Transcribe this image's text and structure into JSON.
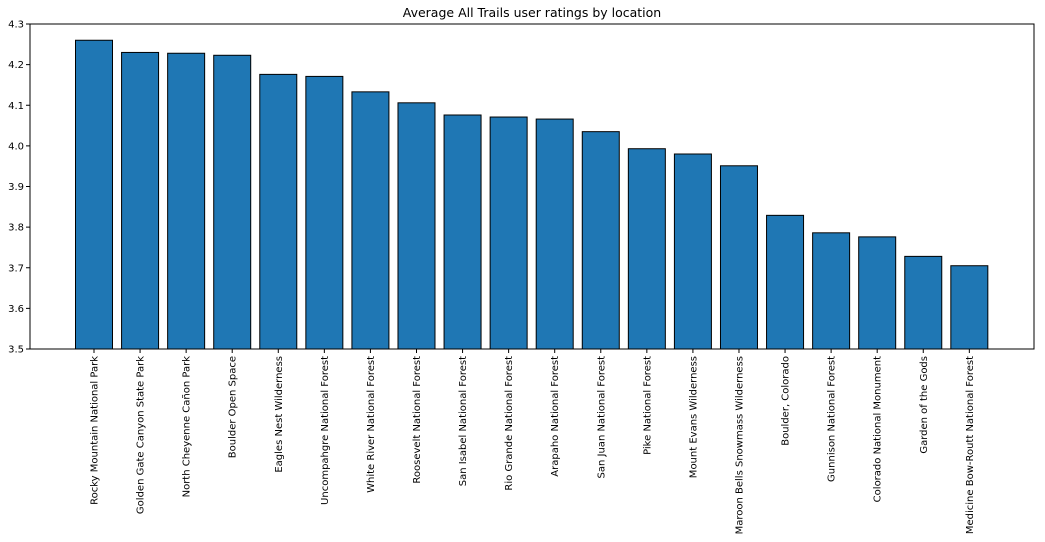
{
  "chart_data": {
    "type": "bar",
    "title": "Average All Trails user ratings by location",
    "xlabel": "",
    "ylabel": "",
    "ylim": [
      3.5,
      4.3
    ],
    "yticks": [
      "3.5",
      "3.6",
      "3.7",
      "3.8",
      "3.9",
      "4.0",
      "4.1",
      "4.2",
      "4.3"
    ],
    "grid": false,
    "legend": "none",
    "bar_color": "#1f77b4",
    "edge_color": "#000000",
    "categories": [
      "Rocky Mountain National Park",
      "Golden Gate Canyon State Park",
      "North Cheyenne Cañon Park",
      "Boulder Open Space",
      "Eagles Nest Wilderness",
      "Uncompahgre National Forest",
      "White River National Forest",
      "Roosevelt National Forest",
      "San Isabel National Forest",
      "Rio Grande National Forest",
      "Arapaho National Forest",
      "San Juan National Forest",
      "Pike National Forest",
      "Mount Evans Wilderness",
      "Maroon Bells Snowmass Wilderness",
      "Boulder, Colorado",
      "Gunnison National Forest",
      "Colorado National Monument",
      "Garden of the Gods",
      "Medicine Bow-Routt National Forest"
    ],
    "values": [
      4.26,
      4.23,
      4.228,
      4.223,
      4.176,
      4.171,
      4.133,
      4.106,
      4.076,
      4.071,
      4.066,
      4.035,
      3.993,
      3.98,
      3.951,
      3.829,
      3.786,
      3.776,
      3.728,
      3.705
    ]
  }
}
